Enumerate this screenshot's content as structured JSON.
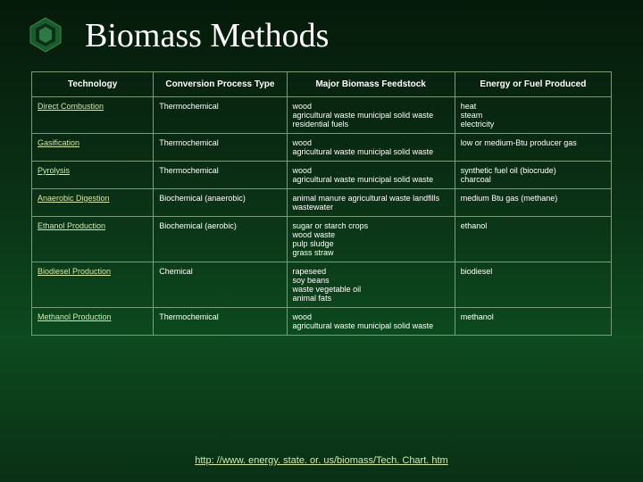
{
  "slide": {
    "title": "Biomass Methods",
    "bullet_colors": {
      "outer": "#1a5c2e",
      "mid": "#2d7a42",
      "inner": "#0a3015"
    }
  },
  "table": {
    "headers": [
      "Technology",
      "Conversion Process Type",
      "Major Biomass Feedstock",
      "Energy or Fuel Produced"
    ],
    "rows": [
      {
        "technology": "Direct Combustion",
        "process": "Thermochemical",
        "feedstock": "wood\nagricultural waste municipal solid waste residential fuels",
        "energy": "heat\nsteam\nelectricity"
      },
      {
        "technology": "Gasification",
        "process": "Thermochemical",
        "feedstock": "wood\nagricultural waste municipal solid waste",
        "energy": "low or medium-Btu producer gas"
      },
      {
        "technology": "Pyrolysis",
        "process": "Thermochemical",
        "feedstock": "wood\nagricultural waste municipal solid waste",
        "energy": "synthetic fuel oil (biocrude)\ncharcoal"
      },
      {
        "technology": "Anaerobic Digestion",
        "process": "Biochemical (anaerobic)",
        "feedstock": "animal manure agricultural waste landfills\nwastewater",
        "energy": "medium Btu gas (methane)"
      },
      {
        "technology": "Ethanol Production",
        "process": "Biochemical (aerobic)",
        "feedstock": "sugar or starch crops\nwood waste\npulp sludge\ngrass straw",
        "energy": "ethanol"
      },
      {
        "technology": "Biodiesel Production",
        "process": "Chemical",
        "feedstock": "rapeseed\nsoy beans\nwaste vegetable oil\nanimal fats",
        "energy": "biodiesel"
      },
      {
        "technology": "Methanol Production",
        "process": "Thermochemical",
        "feedstock": "wood\nagricultural waste municipal solid waste",
        "energy": "methanol"
      }
    ]
  },
  "footer": {
    "link_text": "http: //www. energy. state. or. us/biomass/Tech. Chart. htm"
  },
  "styling": {
    "bg_gradient_top": "#051a0a",
    "bg_gradient_mid": "#0d4a1e",
    "border_color": "#7a9a7a",
    "text_color": "#ffffff",
    "link_color": "#d4e8a8",
    "header_fontsize": 10,
    "cell_fontsize": 9,
    "title_fontsize": 38
  }
}
